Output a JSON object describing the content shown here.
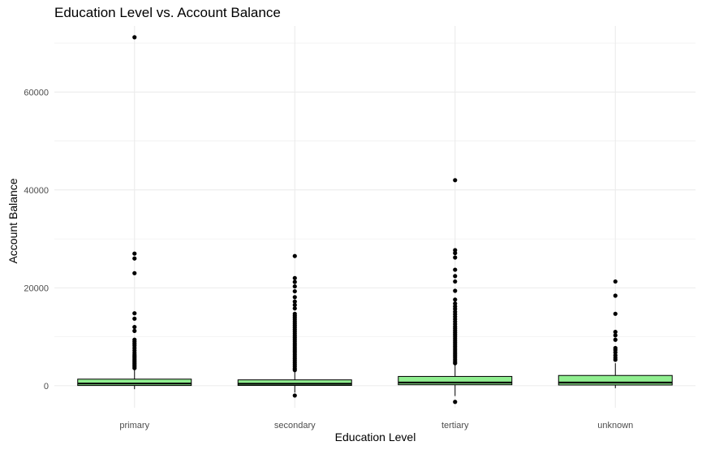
{
  "chart_data": {
    "type": "boxplot",
    "title": "Education Level vs. Account Balance",
    "xlabel": "Education Level",
    "ylabel": "Account Balance",
    "categories": [
      "primary",
      "secondary",
      "tertiary",
      "unknown"
    ],
    "ylim": [
      -4500,
      73500
    ],
    "yticks": [
      0,
      20000,
      40000,
      60000
    ],
    "grid": true,
    "box_fill": "#90EE90",
    "box_stroke": "#000000",
    "point_color": "#000000",
    "grid_color": "#ebebeb",
    "series": [
      {
        "category": "primary",
        "q1": 50,
        "median": 450,
        "q3": 1350,
        "whisker_low": -700,
        "whisker_high": 3300,
        "outliers": [
          71200,
          27000,
          26000,
          23000,
          14800,
          13700,
          12000,
          11200,
          9400,
          9000,
          8600,
          8200,
          7700,
          7200,
          6700,
          6300,
          6000,
          5700,
          5400,
          5100,
          4800,
          4500,
          4200,
          3900,
          3600
        ]
      },
      {
        "category": "secondary",
        "q1": 60,
        "median": 400,
        "q3": 1200,
        "whisker_low": -1400,
        "whisker_high": 2900,
        "outliers": [
          -2000,
          26500,
          22000,
          21200,
          20300,
          19300,
          18100,
          17200,
          16500,
          15800,
          14700,
          14300,
          13900,
          13500,
          13100,
          12700,
          12300,
          11900,
          11500,
          11100,
          10700,
          10300,
          9900,
          9500,
          9100,
          8700,
          8300,
          7900,
          7500,
          7100,
          6700,
          6300,
          5900,
          5500,
          5100,
          4700,
          4300,
          3900,
          3500,
          3200
        ]
      },
      {
        "category": "tertiary",
        "q1": 200,
        "median": 650,
        "q3": 1900,
        "whisker_low": -2100,
        "whisker_high": 4400,
        "outliers": [
          -3300,
          42000,
          27700,
          27100,
          26200,
          23700,
          22400,
          21300,
          19400,
          17600,
          16800,
          16200,
          15700,
          15100,
          14600,
          14100,
          13600,
          13100,
          12600,
          12100,
          11700,
          11300,
          10900,
          10500,
          10100,
          9700,
          9300,
          8900,
          8500,
          8100,
          7700,
          7300,
          6900,
          6500,
          6100,
          5700,
          5300,
          4900,
          4600
        ]
      },
      {
        "category": "unknown",
        "q1": 150,
        "median": 650,
        "q3": 2100,
        "whisker_low": -500,
        "whisker_high": 4600,
        "outliers": [
          21300,
          18400,
          14700,
          11000,
          10300,
          9400,
          7700,
          7300,
          6800,
          6200,
          5700,
          5300
        ]
      }
    ]
  }
}
